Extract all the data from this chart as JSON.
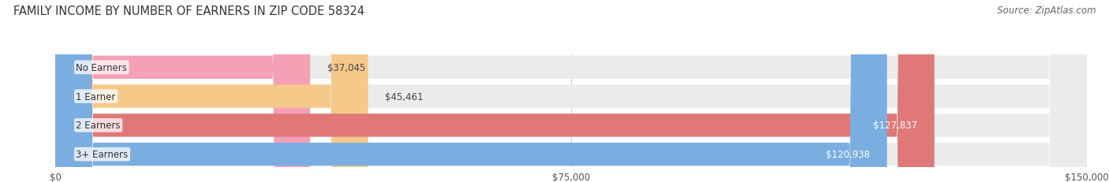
{
  "title": "FAMILY INCOME BY NUMBER OF EARNERS IN ZIP CODE 58324",
  "source": "Source: ZipAtlas.com",
  "categories": [
    "No Earners",
    "1 Earner",
    "2 Earners",
    "3+ Earners"
  ],
  "values": [
    37045,
    45461,
    127837,
    120938
  ],
  "bar_colors": [
    "#f4a0b5",
    "#f5c98a",
    "#e07878",
    "#7aaee0"
  ],
  "bar_bg_color": "#ebebeb",
  "label_colors": [
    "#444444",
    "#444444",
    "#ffffff",
    "#ffffff"
  ],
  "xlim": [
    0,
    150000
  ],
  "xticks": [
    0,
    75000,
    150000
  ],
  "xtick_labels": [
    "$0",
    "$75,000",
    "$150,000"
  ],
  "background_color": "#ffffff",
  "title_fontsize": 10.5,
  "source_fontsize": 8.5
}
